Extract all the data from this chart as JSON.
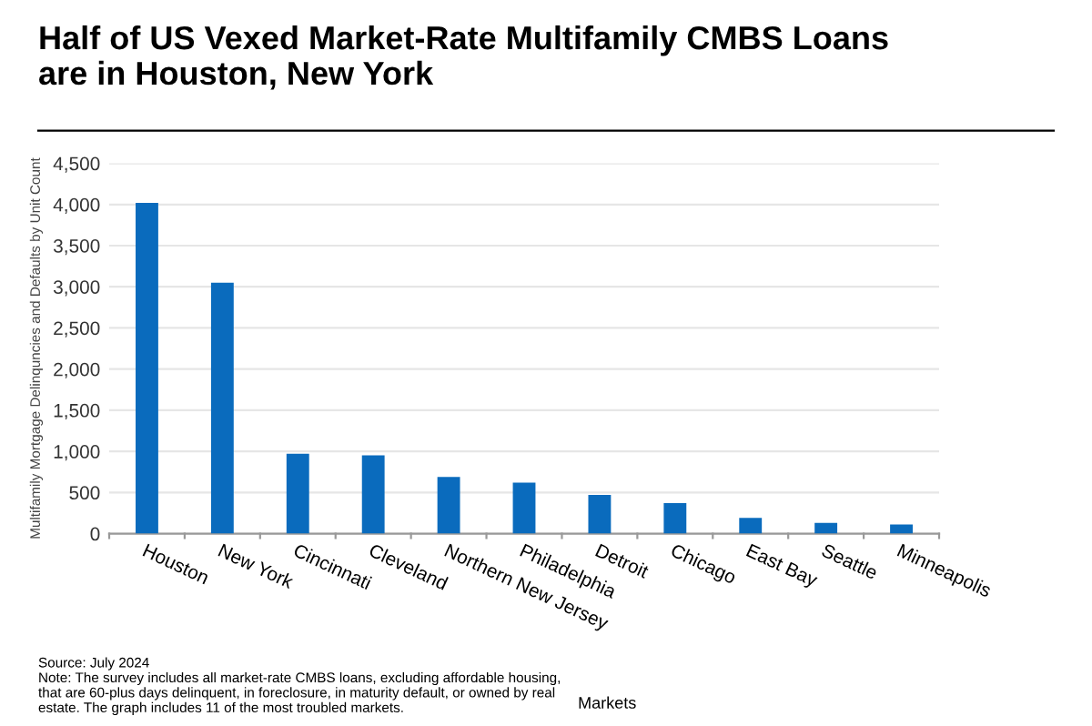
{
  "chart_data": {
    "type": "bar",
    "title": "Half of US Vexed Market-Rate Multifamily CMBS Loans\nare in Houston, New York",
    "categories": [
      "Houston",
      "New York",
      "Cincinnati",
      "Cleveland",
      "Northern New Jersey",
      "Philadelphia",
      "Detroit",
      "Chicago",
      "East Bay",
      "Seattle",
      "Minneapolis"
    ],
    "values": [
      4020,
      3050,
      970,
      950,
      690,
      620,
      470,
      370,
      190,
      130,
      110
    ],
    "color": "#0a6bbd",
    "xlabel": "Markets",
    "ylabel": "Multifamily Mortgage Delinquncies and Defaults by Unit Count",
    "ylim": [
      0,
      4500
    ],
    "yticks": [
      {
        "value": 0,
        "label": "0"
      },
      {
        "value": 500,
        "label": "500"
      },
      {
        "value": 1000,
        "label": "1,000"
      },
      {
        "value": 1500,
        "label": "1,500"
      },
      {
        "value": 2000,
        "label": "2,000"
      },
      {
        "value": 2500,
        "label": "2,500"
      },
      {
        "value": 3000,
        "label": "3,000"
      },
      {
        "value": 3500,
        "label": "3,500"
      },
      {
        "value": 4000,
        "label": "4,000"
      },
      {
        "value": 4500,
        "label": "4,500"
      }
    ],
    "grid": "y",
    "legend": false,
    "annotations": [
      "Source: July 2024\nNote: The survey includes all market-rate CMBS loans, excluding affordable housing,\nthat are 60-plus days delinquent, in foreclosure, in maturity default, or owned by real\nestate. The graph includes 11 of the most troubled markets."
    ]
  }
}
